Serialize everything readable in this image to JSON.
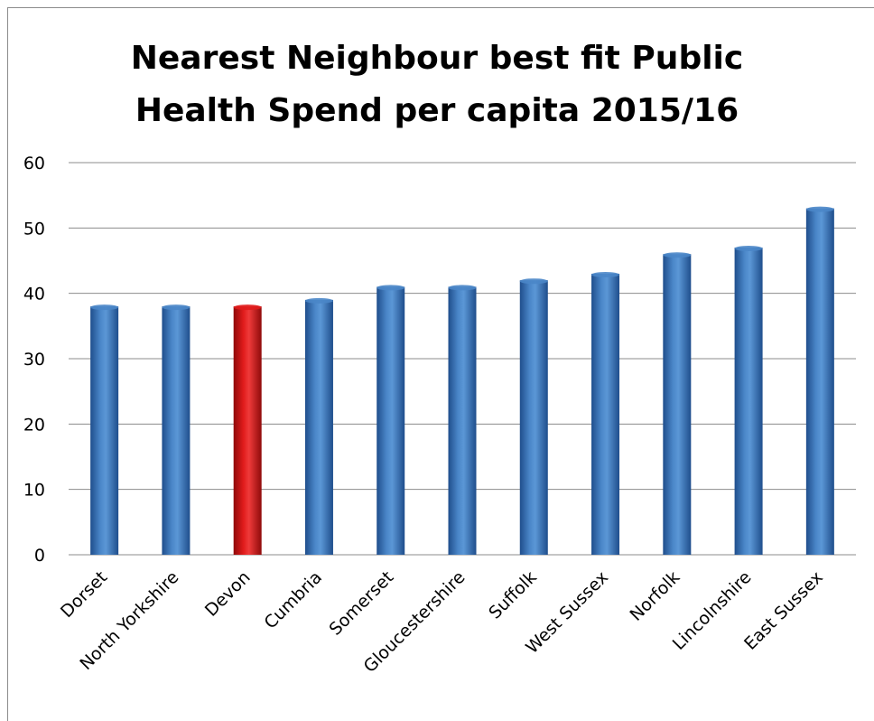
{
  "chart_data": {
    "type": "bar",
    "title_lines": [
      "Nearest Neighbour best fit Public",
      "Health Spend per capita 2015/16"
    ],
    "categories": [
      "Dorset",
      "North Yorkshire",
      "Devon",
      "Cumbria",
      "Somerset",
      "Gloucestershire",
      "Suffolk",
      "West Sussex",
      "Norfolk",
      "Lincolnshire",
      "East Sussex"
    ],
    "values": [
      38,
      38,
      38,
      39,
      41,
      41,
      42,
      43,
      46,
      47,
      53
    ],
    "highlight_category": "Devon",
    "colors": {
      "bar": "#4a86c8",
      "bar_dark": "#1f4e8c",
      "highlight": "#e01b1b",
      "highlight_dark": "#8f0a0a",
      "grid": "#8c8c8c"
    },
    "ylim": [
      0,
      60
    ],
    "yticks": [
      0,
      10,
      20,
      30,
      40,
      50,
      60
    ],
    "xlabel": "",
    "ylabel": "",
    "grid": true,
    "legend": "none"
  }
}
